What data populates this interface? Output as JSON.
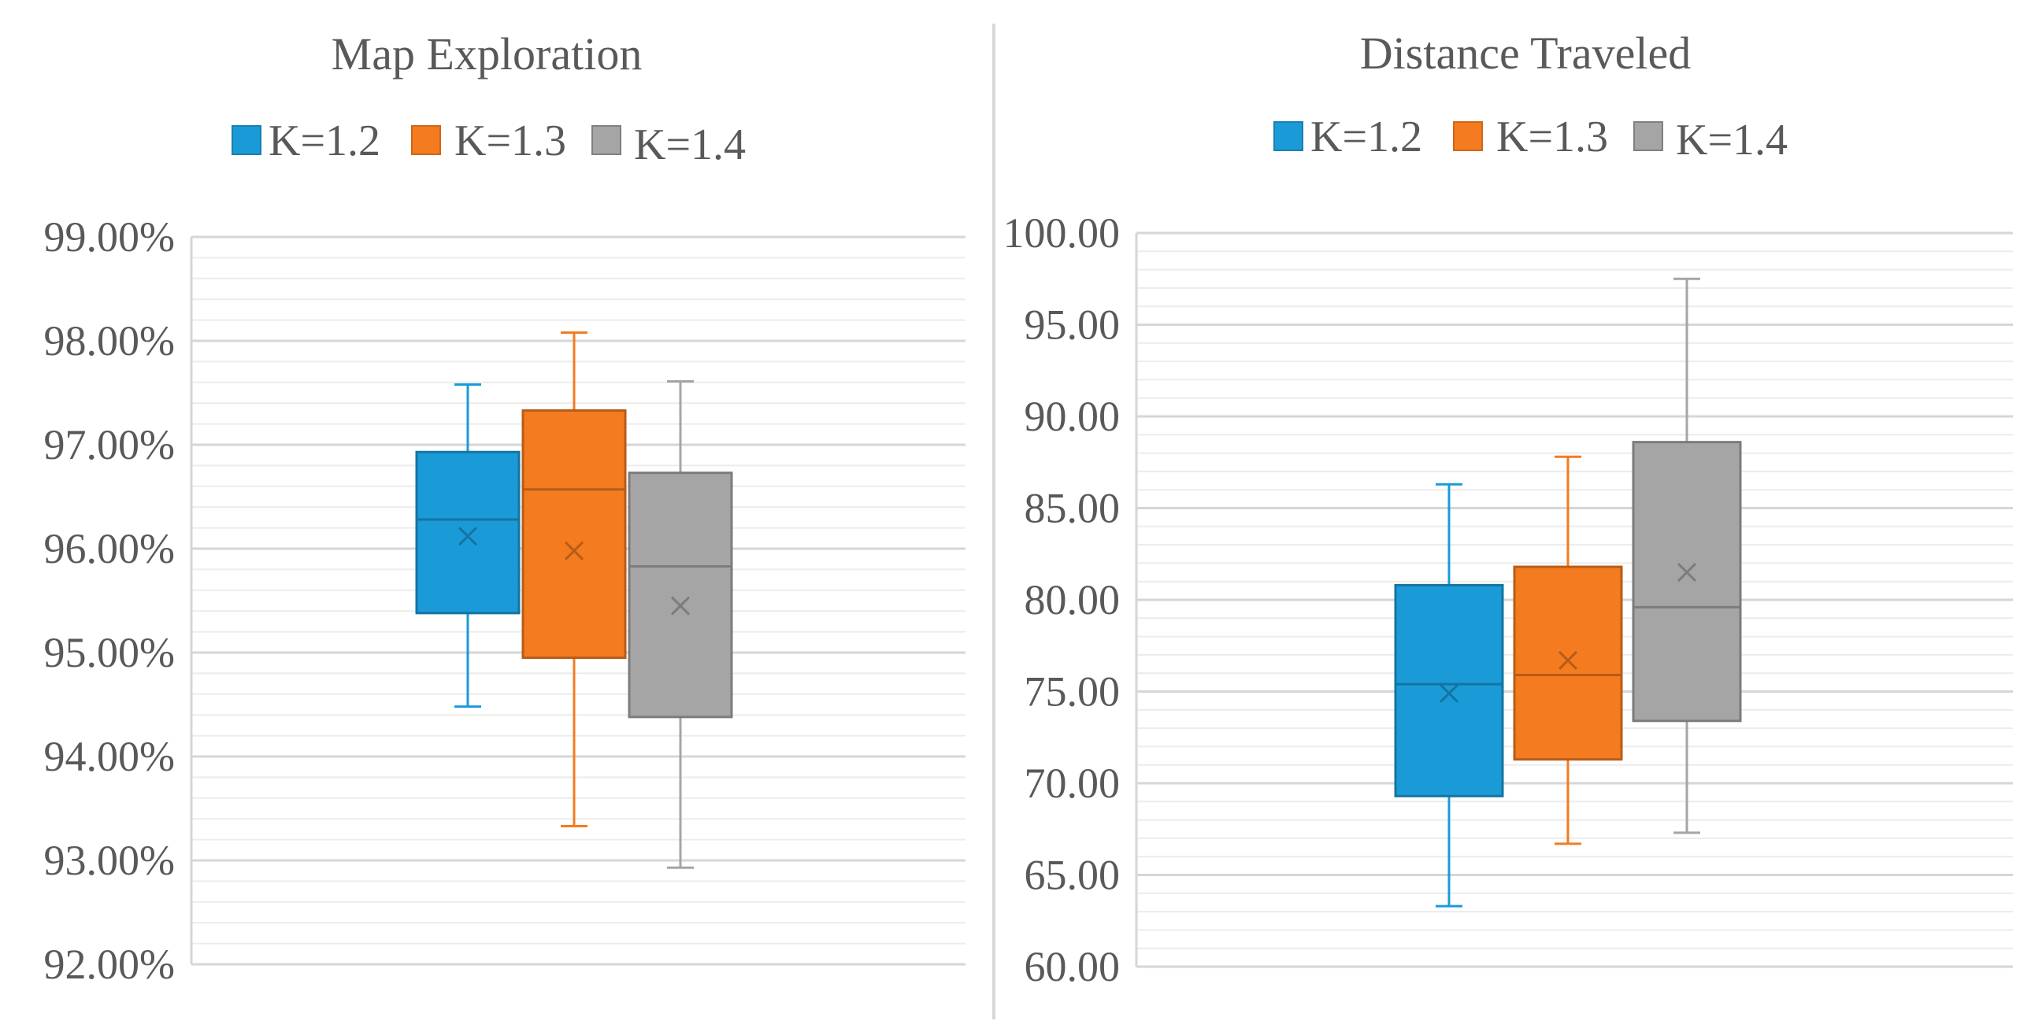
{
  "chart_data": [
    {
      "type": "boxplot",
      "title": "Map Exploration",
      "legend": [
        "K=1.2",
        "K=1.3",
        "K=1.4"
      ],
      "legend_position": "top",
      "ylim": [
        92,
        99
      ],
      "major_step": 1,
      "minor_step": 0.2,
      "tick_labels": [
        "99.00%",
        "98.00%",
        "97.00%",
        "96.00%",
        "95.00%",
        "94.00%",
        "93.00%",
        "92.00%"
      ],
      "grid": true,
      "series": [
        {
          "name": "K=1.2",
          "color": "#1a9bd7",
          "min": 94.48,
          "q1": 95.38,
          "median": 96.28,
          "q3": 96.93,
          "max": 97.58,
          "mean": 96.12
        },
        {
          "name": "K=1.3",
          "color": "#f47b20",
          "min": 93.33,
          "q1": 94.95,
          "median": 96.57,
          "q3": 97.33,
          "max": 98.08,
          "mean": 95.98
        },
        {
          "name": "K=1.4",
          "color": "#a5a5a5",
          "min": 92.93,
          "q1": 94.38,
          "median": 95.83,
          "q3": 96.73,
          "max": 97.61,
          "mean": 95.45
        }
      ]
    },
    {
      "type": "boxplot",
      "title": "Distance Traveled",
      "legend": [
        "K=1.2",
        "K=1.3",
        "K=1.4"
      ],
      "legend_position": "top",
      "ylim": [
        60,
        100
      ],
      "major_step": 5,
      "minor_step": 1,
      "tick_labels": [
        "100.00",
        "95.00",
        "90.00",
        "85.00",
        "80.00",
        "75.00",
        "70.00",
        "65.00",
        "60.00"
      ],
      "grid": true,
      "series": [
        {
          "name": "K=1.2",
          "color": "#1a9bd7",
          "min": 63.3,
          "q1": 69.3,
          "median": 75.4,
          "q3": 80.8,
          "max": 86.3,
          "mean": 74.9
        },
        {
          "name": "K=1.3",
          "color": "#f47b20",
          "min": 66.7,
          "q1": 71.3,
          "median": 75.9,
          "q3": 81.8,
          "max": 87.8,
          "mean": 76.7
        },
        {
          "name": "K=1.4",
          "color": "#a5a5a5",
          "min": 67.3,
          "q1": 73.4,
          "median": 79.6,
          "q3": 88.6,
          "max": 97.5,
          "mean": 81.5
        }
      ]
    }
  ]
}
